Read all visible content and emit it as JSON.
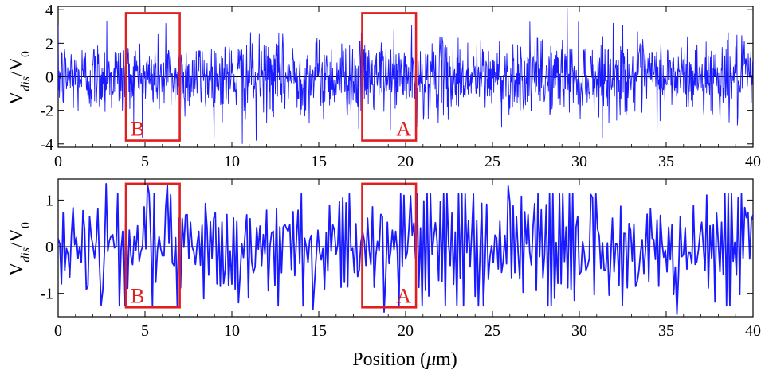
{
  "chart_data": [
    {
      "type": "line",
      "ylabel_main": "V",
      "ylabel_sub": "dis",
      "ylabel_tail": "/V",
      "ylabel_tail_sub": "0",
      "xlim": [
        0,
        40
      ],
      "ylim": [
        -4.2,
        4.2
      ],
      "x_ticks": [
        "0",
        "5",
        "10",
        "15",
        "20",
        "25",
        "30",
        "35",
        "40"
      ],
      "x_tick_values": [
        0,
        5,
        10,
        15,
        20,
        25,
        30,
        35,
        40
      ],
      "y_ticks": [
        "-4",
        "-2",
        "0",
        "2",
        "4"
      ],
      "y_tick_values": [
        -4,
        -2,
        0,
        2,
        4
      ],
      "line_color": "#1a1aff",
      "samples": 1600,
      "amplitude": 1.1,
      "spikes": [
        {
          "x": 29.3,
          "y": 4.1
        },
        {
          "x": 10.6,
          "y": -4.0
        },
        {
          "x": 11.4,
          "y": -3.8
        },
        {
          "x": 17.3,
          "y": -3.1
        },
        {
          "x": 20.7,
          "y": -3.0
        },
        {
          "x": 2.8,
          "y": 3.3
        },
        {
          "x": 6.2,
          "y": 3.2
        },
        {
          "x": 32.5,
          "y": 3.1
        },
        {
          "x": 39.1,
          "y": -2.9
        }
      ],
      "regions": [
        {
          "label": "B",
          "x0": 3.9,
          "x1": 7.0,
          "y0": -3.8,
          "y1": 3.8,
          "label_pos": "bottom-left"
        },
        {
          "label": "A",
          "x0": 17.5,
          "x1": 20.6,
          "y0": -3.8,
          "y1": 3.8,
          "label_pos": "bottom-right"
        }
      ],
      "region_color": "#e02020"
    },
    {
      "type": "line",
      "ylabel_main": "V",
      "ylabel_sub": "dis",
      "ylabel_tail": "/V",
      "ylabel_tail_sub": "0",
      "xlabel": "Position (",
      "xlabel_mu": "μ",
      "xlabel_tail": "m)",
      "xlim": [
        0,
        40
      ],
      "ylim": [
        -1.5,
        1.45
      ],
      "x_ticks": [
        "0",
        "5",
        "10",
        "15",
        "20",
        "25",
        "30",
        "35",
        "40"
      ],
      "x_tick_values": [
        0,
        5,
        10,
        15,
        20,
        25,
        30,
        35,
        40
      ],
      "y_ticks": [
        "-1",
        "0",
        "1"
      ],
      "y_tick_values": [
        -1,
        0,
        1
      ],
      "line_color": "#1a1aff",
      "samples": 420,
      "amplitude": 0.55,
      "spikes": [
        {
          "x": 35.6,
          "y": -1.45
        },
        {
          "x": 18.8,
          "y": -1.4
        },
        {
          "x": 14.7,
          "y": -1.35
        },
        {
          "x": 2.8,
          "y": 1.35
        },
        {
          "x": 5.1,
          "y": 1.35
        },
        {
          "x": 6.3,
          "y": 1.35
        },
        {
          "x": 25.9,
          "y": 1.3
        },
        {
          "x": 2.5,
          "y": -1.25
        },
        {
          "x": 10.4,
          "y": -1.2
        }
      ],
      "regions": [
        {
          "label": "B",
          "x0": 3.9,
          "x1": 7.0,
          "y0": -1.3,
          "y1": 1.35,
          "label_pos": "bottom-left"
        },
        {
          "label": "A",
          "x0": 17.5,
          "x1": 20.6,
          "y0": -1.3,
          "y1": 1.35,
          "label_pos": "bottom-right"
        }
      ],
      "region_color": "#e02020"
    }
  ]
}
